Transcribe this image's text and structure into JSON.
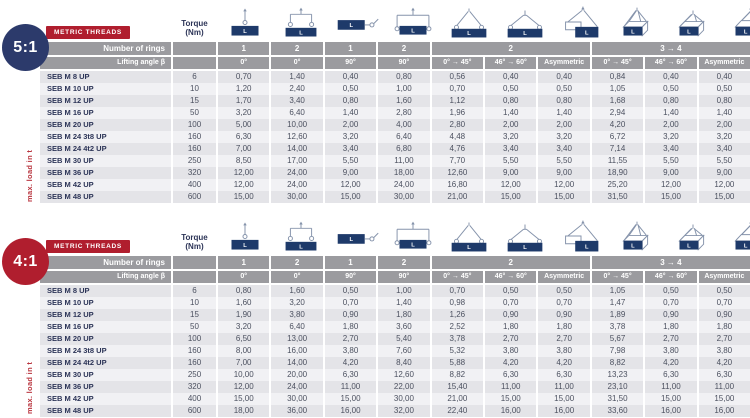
{
  "header": {
    "badge": "METRIC THREADS",
    "torque_label_1": "Torque",
    "torque_label_2": "(Nm)",
    "rings_label": "Number of rings",
    "angle_label": "Lifting angle β",
    "side_label": "max. load in t"
  },
  "colors": {
    "navy": "#2c3a6b",
    "red": "#b01e2e",
    "header_gray": "#9b9b9f",
    "block_navy": "#1e3a6a",
    "sling_line": "#8593ab",
    "side_label_red": "#b8323c"
  },
  "rings_groups": [
    {
      "label": "1",
      "span": 1
    },
    {
      "label": "2",
      "span": 1
    },
    {
      "label": "1",
      "span": 1
    },
    {
      "label": "2",
      "span": 1
    },
    {
      "label": "2",
      "span": 3
    },
    {
      "label": "3 → 4",
      "span": 3
    }
  ],
  "columns": [
    {
      "icon": "one-ring-vertical",
      "angle": "0°"
    },
    {
      "icon": "two-rings-spreader",
      "angle": "0°"
    },
    {
      "icon": "one-ring-side",
      "angle": "90°"
    },
    {
      "icon": "two-rings-side",
      "angle": "90°"
    },
    {
      "icon": "two-rings-sling-45",
      "angle": "0° → 45°"
    },
    {
      "icon": "two-rings-sling-60",
      "angle": "46° → 60°"
    },
    {
      "icon": "two-rings-asymmetric",
      "angle": "Asymmetric"
    },
    {
      "icon": "multi-ring-sling-45",
      "angle": "0° → 45°"
    },
    {
      "icon": "multi-ring-sling-60",
      "angle": "46° → 60°"
    },
    {
      "icon": "multi-ring-asymmetric",
      "angle": "Asymmetric"
    }
  ],
  "tables": [
    {
      "ratio": "5:1",
      "circle_color": "#2c3a6b",
      "rows": [
        {
          "name": "SEB M 8 UP",
          "torque": "6",
          "values": [
            "0,70",
            "1,40",
            "0,40",
            "0,80",
            "0,56",
            "0,40",
            "0,40",
            "0,84",
            "0,40",
            "0,40"
          ]
        },
        {
          "name": "SEB M 10 UP",
          "torque": "10",
          "values": [
            "1,20",
            "2,40",
            "0,50",
            "1,00",
            "0,70",
            "0,50",
            "0,50",
            "1,05",
            "0,50",
            "0,50"
          ]
        },
        {
          "name": "SEB M 12 UP",
          "torque": "15",
          "values": [
            "1,70",
            "3,40",
            "0,80",
            "1,60",
            "1,12",
            "0,80",
            "0,80",
            "1,68",
            "0,80",
            "0,80"
          ]
        },
        {
          "name": "SEB M 16 UP",
          "torque": "50",
          "values": [
            "3,20",
            "6,40",
            "1,40",
            "2,80",
            "1,96",
            "1,40",
            "1,40",
            "2,94",
            "1,40",
            "1,40"
          ]
        },
        {
          "name": "SEB M 20 UP",
          "torque": "100",
          "values": [
            "5,00",
            "10,00",
            "2,00",
            "4,00",
            "2,80",
            "2,00",
            "2,00",
            "4,20",
            "2,00",
            "2,00"
          ]
        },
        {
          "name": "SEB M 24 3t8 UP",
          "torque": "160",
          "values": [
            "6,30",
            "12,60",
            "3,20",
            "6,40",
            "4,48",
            "3,20",
            "3,20",
            "6,72",
            "3,20",
            "3,20"
          ]
        },
        {
          "name": "SEB M 24 4t2 UP",
          "torque": "160",
          "values": [
            "7,00",
            "14,00",
            "3,40",
            "6,80",
            "4,76",
            "3,40",
            "3,40",
            "7,14",
            "3,40",
            "3,40"
          ]
        },
        {
          "name": "SEB M 30 UP",
          "torque": "250",
          "values": [
            "8,50",
            "17,00",
            "5,50",
            "11,00",
            "7,70",
            "5,50",
            "5,50",
            "11,55",
            "5,50",
            "5,50"
          ]
        },
        {
          "name": "SEB M 36 UP",
          "torque": "320",
          "values": [
            "12,00",
            "24,00",
            "9,00",
            "18,00",
            "12,60",
            "9,00",
            "9,00",
            "18,90",
            "9,00",
            "9,00"
          ]
        },
        {
          "name": "SEB M 42 UP",
          "torque": "400",
          "values": [
            "12,00",
            "24,00",
            "12,00",
            "24,00",
            "16,80",
            "12,00",
            "12,00",
            "25,20",
            "12,00",
            "12,00"
          ]
        },
        {
          "name": "SEB M 48 UP",
          "torque": "600",
          "values": [
            "15,00",
            "30,00",
            "15,00",
            "30,00",
            "21,00",
            "15,00",
            "15,00",
            "31,50",
            "15,00",
            "15,00"
          ]
        }
      ]
    },
    {
      "ratio": "4:1",
      "circle_color": "#b01e2e",
      "rows": [
        {
          "name": "SEB M 8 UP",
          "torque": "6",
          "values": [
            "0,80",
            "1,60",
            "0,50",
            "1,00",
            "0,70",
            "0,50",
            "0,50",
            "1,05",
            "0,50",
            "0,50"
          ]
        },
        {
          "name": "SEB M 10 UP",
          "torque": "10",
          "values": [
            "1,60",
            "3,20",
            "0,70",
            "1,40",
            "0,98",
            "0,70",
            "0,70",
            "1,47",
            "0,70",
            "0,70"
          ]
        },
        {
          "name": "SEB M 12 UP",
          "torque": "15",
          "values": [
            "1,90",
            "3,80",
            "0,90",
            "1,80",
            "1,26",
            "0,90",
            "0,90",
            "1,89",
            "0,90",
            "0,90"
          ]
        },
        {
          "name": "SEB M 16 UP",
          "torque": "50",
          "values": [
            "3,20",
            "6,40",
            "1,80",
            "3,60",
            "2,52",
            "1,80",
            "1,80",
            "3,78",
            "1,80",
            "1,80"
          ]
        },
        {
          "name": "SEB M 20 UP",
          "torque": "100",
          "values": [
            "6,50",
            "13,00",
            "2,70",
            "5,40",
            "3,78",
            "2,70",
            "2,70",
            "5,67",
            "2,70",
            "2,70"
          ]
        },
        {
          "name": "SEB M 24 3t8 UP",
          "torque": "160",
          "values": [
            "8,00",
            "16,00",
            "3,80",
            "7,60",
            "5,32",
            "3,80",
            "3,80",
            "7,98",
            "3,80",
            "3,80"
          ]
        },
        {
          "name": "SEB M 24 4t2 UP",
          "torque": "160",
          "values": [
            "7,00",
            "14,00",
            "4,20",
            "8,40",
            "5,88",
            "4,20",
            "4,20",
            "8,82",
            "4,20",
            "4,20"
          ]
        },
        {
          "name": "SEB M 30 UP",
          "torque": "250",
          "values": [
            "10,00",
            "20,00",
            "6,30",
            "12,60",
            "8,82",
            "6,30",
            "6,30",
            "13,23",
            "6,30",
            "6,30"
          ]
        },
        {
          "name": "SEB M 36 UP",
          "torque": "320",
          "values": [
            "12,00",
            "24,00",
            "11,00",
            "22,00",
            "15,40",
            "11,00",
            "11,00",
            "23,10",
            "11,00",
            "11,00"
          ]
        },
        {
          "name": "SEB M 42 UP",
          "torque": "400",
          "values": [
            "15,00",
            "30,00",
            "15,00",
            "30,00",
            "21,00",
            "15,00",
            "15,00",
            "31,50",
            "15,00",
            "15,00"
          ]
        },
        {
          "name": "SEB M 48 UP",
          "torque": "600",
          "values": [
            "18,00",
            "36,00",
            "16,00",
            "32,00",
            "22,40",
            "16,00",
            "16,00",
            "33,60",
            "16,00",
            "16,00"
          ]
        }
      ]
    }
  ]
}
